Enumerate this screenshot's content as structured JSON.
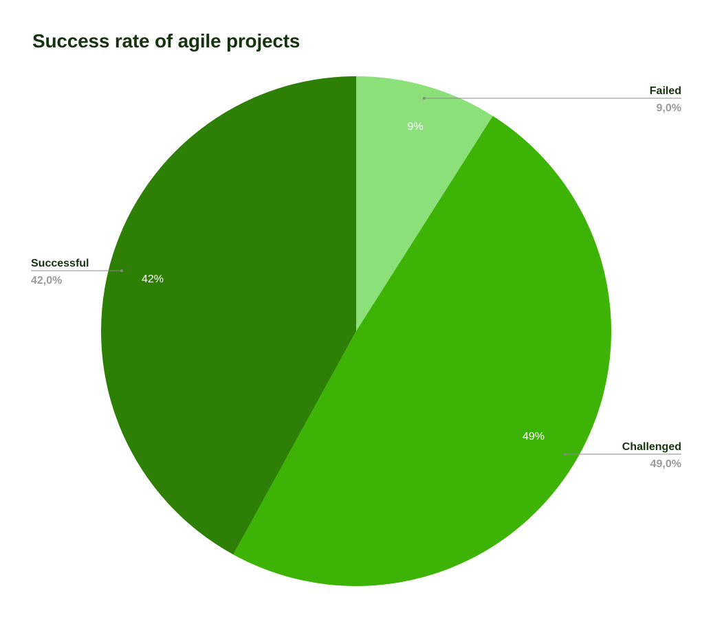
{
  "chart_data": {
    "type": "pie",
    "title": "Success rate of agile projects",
    "slices": [
      {
        "name": "Failed",
        "value": 9.0,
        "pct_label": "9%",
        "value_label": "9,0%",
        "color": "#8be07a"
      },
      {
        "name": "Challenged",
        "value": 49.0,
        "pct_label": "49%",
        "value_label": "49,0%",
        "color": "#3db306"
      },
      {
        "name": "Successful",
        "value": 42.0,
        "pct_label": "42%",
        "value_label": "42,0%",
        "color": "#2e7f06"
      }
    ],
    "start_angle": "12 o'clock",
    "direction": "clockwise",
    "callout_line_color": "#888888"
  }
}
